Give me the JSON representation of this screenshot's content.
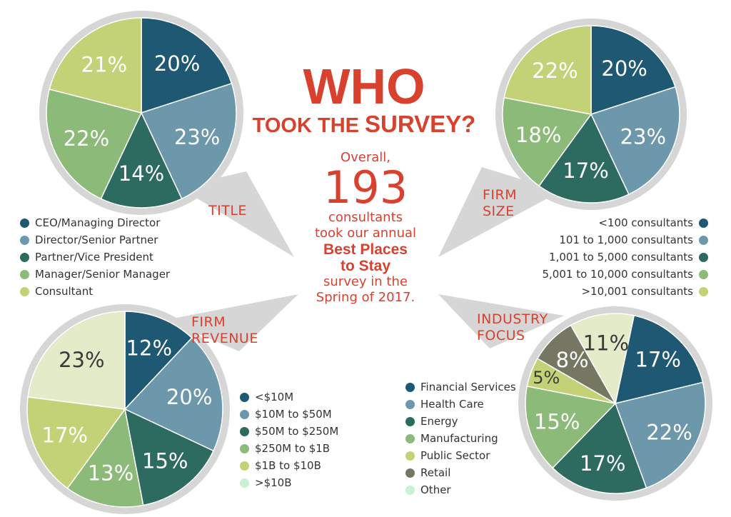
{
  "headline": {
    "title": "WHO",
    "subtitle_lead": "TOOK THE ",
    "subtitle_emph": "SURVEY?"
  },
  "summary": {
    "lead": "Overall,",
    "count": "193",
    "line1": "consultants",
    "line2": "took our annual",
    "survey_name_1": "Best Places",
    "survey_name_2": "to Stay",
    "line3": "survey in the",
    "line4": "Spring of 2017."
  },
  "colors": {
    "slate_blue": "#1f5872",
    "steel_blue": "#6d98ac",
    "teal_green": "#2d6a60",
    "leaf_green": "#8cba78",
    "lime": "#c4d277",
    "olive_gray": "#767763",
    "cream": "#e4ebc8",
    "pale_mint": "#c9f1d3",
    "accent_red": "#d9412f",
    "bubble_gray": "#d6d6d6"
  },
  "chart_data": [
    {
      "type": "pie",
      "title": "TITLE",
      "categories": [
        "CEO/Managing Director",
        "Director/Senior Partner",
        "Partner/Vice President",
        "Manager/Senior Manager",
        "Consultant"
      ],
      "values": [
        20,
        23,
        14,
        22,
        21
      ],
      "labels": [
        "20%",
        "23%",
        "14%",
        "22%",
        "21%"
      ],
      "slice_colors": [
        "#1f5872",
        "#6d98ac",
        "#2d6a60",
        "#8cba78",
        "#c4d277"
      ],
      "legend_colors": [
        "#1f5872",
        "#6d98ac",
        "#2d6a60",
        "#8cba78",
        "#c4d277"
      ],
      "legend_placement": "bottom-left"
    },
    {
      "type": "pie",
      "title": "FIRM SIZE",
      "categories": [
        "<100 consultants",
        "101 to 1,000 consultants",
        "1,001 to 5,000 consultants",
        "5,001 to 10,000 consultants",
        ">10,001 consultants"
      ],
      "values": [
        20,
        23,
        17,
        18,
        22
      ],
      "labels": [
        "20%",
        "23%",
        "17%",
        "18%",
        "22%"
      ],
      "slice_colors": [
        "#1f5872",
        "#6d98ac",
        "#2d6a60",
        "#8cba78",
        "#c4d277"
      ],
      "legend_colors": [
        "#1f5872",
        "#6d98ac",
        "#2d6a60",
        "#8cba78",
        "#c4d277"
      ],
      "legend_placement": "bottom-right"
    },
    {
      "type": "pie",
      "title": "FIRM REVENUE",
      "categories": [
        "<$10M",
        "$10M to $50M",
        "$50M to $250M",
        "$250M to $1B",
        "$1B to $10B",
        ">$10B"
      ],
      "values": [
        12,
        20,
        15,
        13,
        17,
        23
      ],
      "labels": [
        "12%",
        "20%",
        "15%",
        "13%",
        "17%",
        "23%"
      ],
      "slice_colors": [
        "#1f5872",
        "#6d98ac",
        "#2d6a60",
        "#8cba78",
        "#c4d277",
        "#e4ebc8"
      ],
      "legend_colors": [
        "#1f5872",
        "#6d98ac",
        "#2d6a60",
        "#8cba78",
        "#c4d277",
        "#c9f1d3"
      ],
      "legend_placement": "right"
    },
    {
      "type": "pie",
      "title": "INDUSTRY FOCUS",
      "categories": [
        "Financial Services",
        "Health Care",
        "Energy",
        "Manufacturing",
        "Public Sector",
        "Retail",
        "Other"
      ],
      "values": [
        17,
        22,
        17,
        15,
        5,
        8,
        11
      ],
      "labels": [
        "17%",
        "22%",
        "17%",
        "15%",
        "5%",
        "8%",
        "11%"
      ],
      "slice_colors": [
        "#1f5872",
        "#6d98ac",
        "#2d6a60",
        "#8cba78",
        "#c4d277",
        "#767763",
        "#e4ebc8"
      ],
      "legend_colors": [
        "#1f5872",
        "#6d98ac",
        "#2d6a60",
        "#8cba78",
        "#c4d277",
        "#767763",
        "#c9f1d3"
      ],
      "legend_placement": "left"
    }
  ]
}
